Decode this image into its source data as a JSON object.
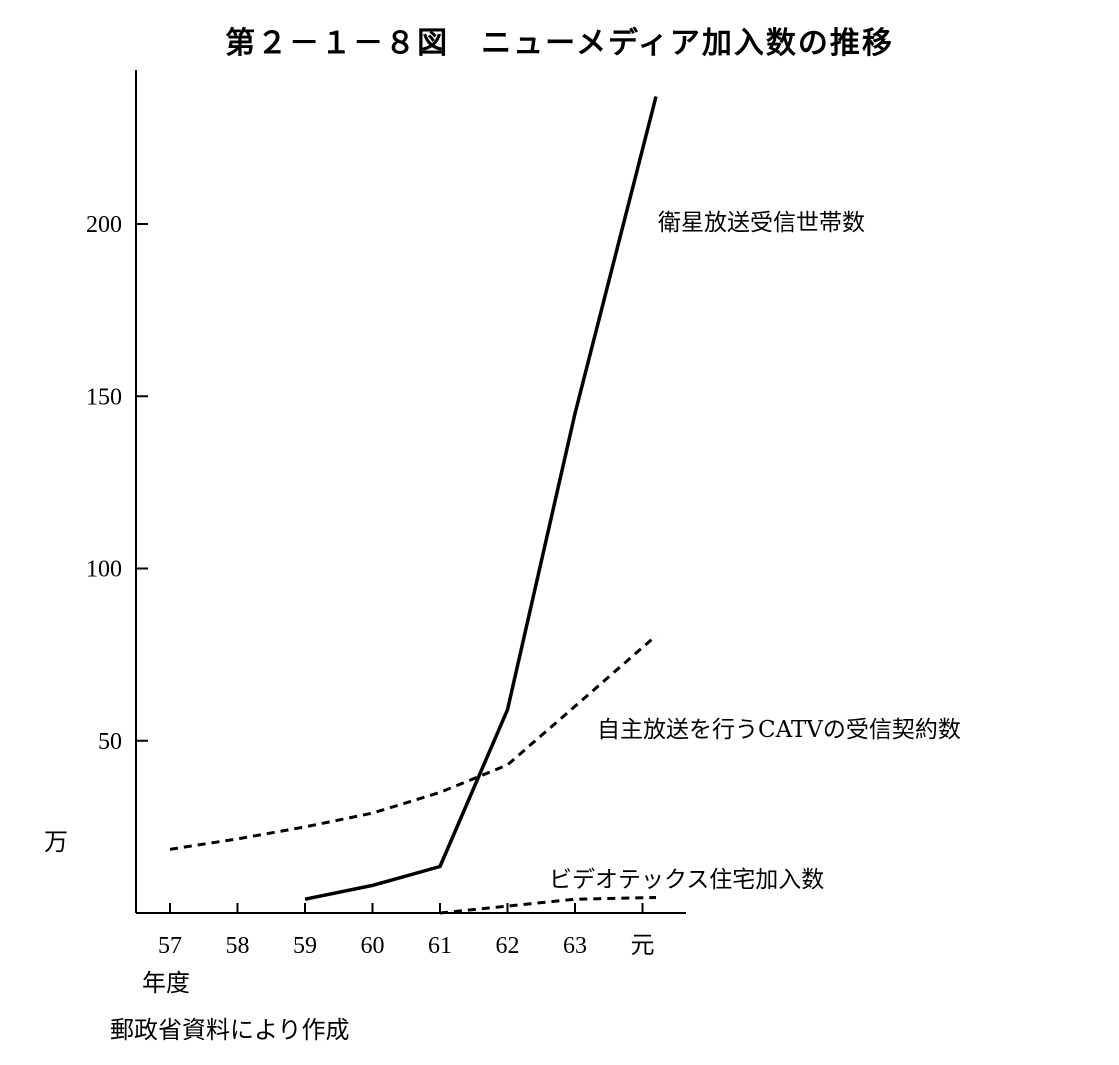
{
  "chart_data": {
    "type": "line",
    "title": "第２－１－８図　ニューメディア加入数の推移",
    "ylabel": "万",
    "xlabel": "年度",
    "source": "郵政省資料により作成",
    "categories": [
      "57",
      "58",
      "59",
      "60",
      "61",
      "62",
      "63",
      "元"
    ],
    "ylim": [
      0,
      240
    ],
    "yticks": [
      50,
      100,
      150,
      200
    ],
    "grid": false,
    "legend": "inline labels",
    "series": [
      {
        "name": "衛星放送受信世帯数",
        "style": "solid",
        "points": [
          [
            2,
            4
          ],
          [
            3,
            8
          ],
          [
            4,
            13.5
          ],
          [
            5,
            59
          ],
          [
            6,
            145
          ],
          [
            7.2,
            237
          ]
        ]
      },
      {
        "name": "自主放送を行うCATVの受信契約数",
        "style": "dashed",
        "points": [
          [
            0,
            18.5
          ],
          [
            1,
            21.5
          ],
          [
            2,
            25
          ],
          [
            3,
            29
          ],
          [
            4,
            35
          ],
          [
            5,
            43
          ],
          [
            6,
            60
          ],
          [
            7.2,
            80.5
          ]
        ]
      },
      {
        "name": "ビデオテックス住宅加入数",
        "style": "dashed",
        "points": [
          [
            4,
            0
          ],
          [
            5,
            2
          ],
          [
            6,
            4
          ],
          [
            7.2,
            4.5
          ]
        ]
      }
    ]
  }
}
